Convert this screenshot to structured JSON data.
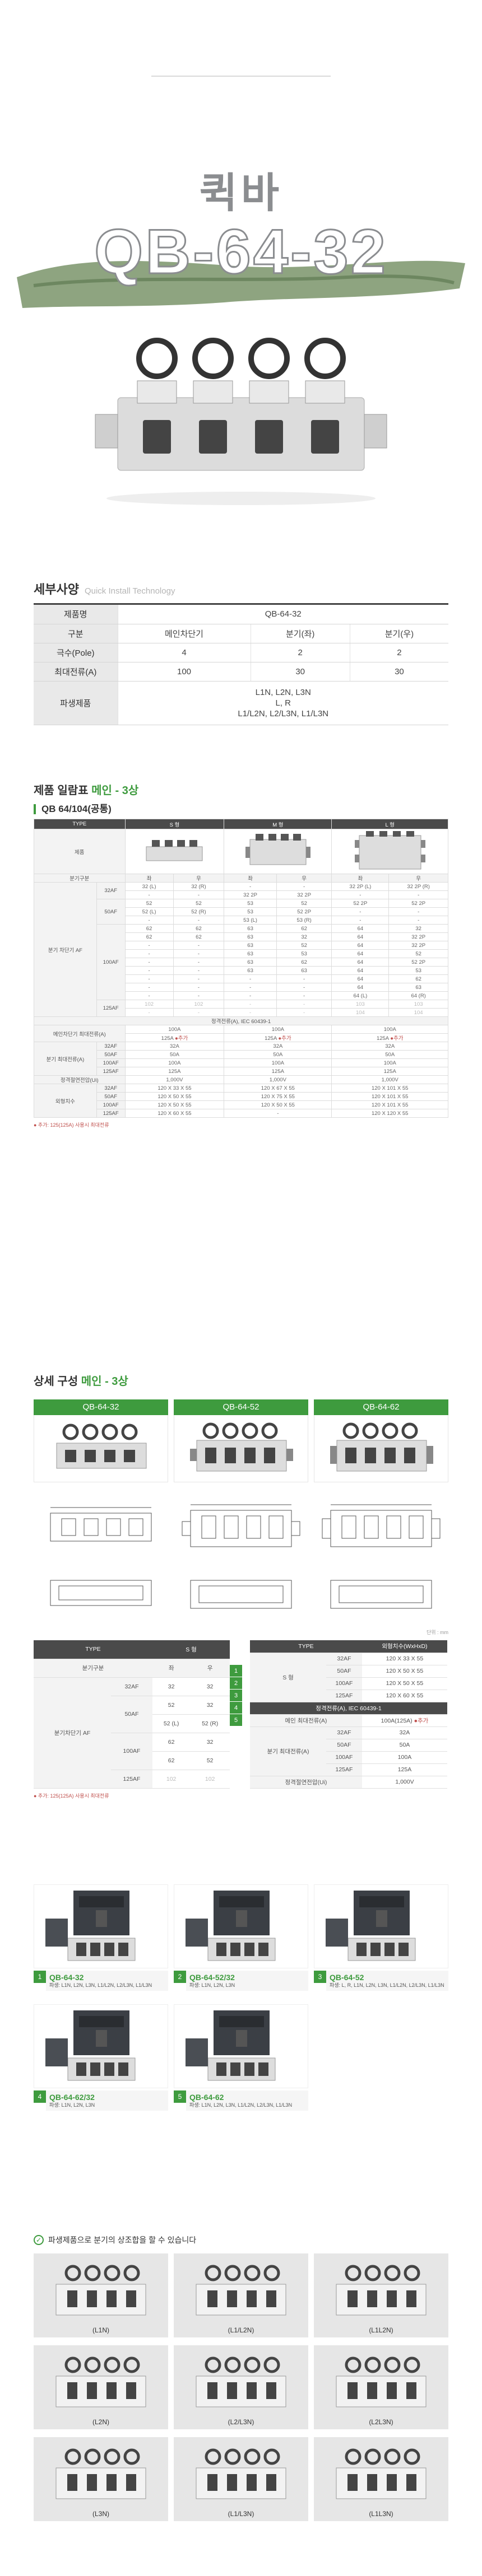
{
  "hero": {
    "title_kr": "퀵바",
    "model": "QB-64-32"
  },
  "spec": {
    "title": "세부사양",
    "subtitle": "Quick Install Technology",
    "rows": [
      {
        "label": "제품명",
        "cells": [
          "QB-64-32"
        ]
      },
      {
        "label": "구분",
        "cells": [
          "메인차단기",
          "분기(좌)",
          "분기(우)"
        ]
      },
      {
        "label": "극수(Pole)",
        "cells": [
          "4",
          "2",
          "2"
        ]
      },
      {
        "label": "최대전류(A)",
        "cells": [
          "100",
          "30",
          "30"
        ]
      },
      {
        "label": "파생제품",
        "cells": [
          "L1N, L2N, L3N",
          "L, R",
          "L1/L2N, L2/L3N, L1/L3N"
        ]
      }
    ]
  },
  "product_table": {
    "title": "제품 일람표",
    "accent": "메인 - 3상",
    "subtitle": "QB 64/104(공통)",
    "header": [
      "TYPE",
      "S 형",
      "M 형",
      "L 형"
    ],
    "product_label": "제품",
    "branch_label": "분기구분",
    "branch_cols": [
      "좌",
      "우",
      "좌",
      "우",
      "좌",
      "우"
    ],
    "breaker_label": "분기 차단기 AF",
    "af32": "32AF",
    "af50": "50AF",
    "af100": "100AF",
    "af125": "125AF",
    "rows": [
      [
        "32AF",
        "32 (L)",
        "32 (R)",
        "-",
        "-",
        "32 2P (L)",
        "32 2P (R)"
      ],
      [
        "",
        "-",
        "-",
        "32 2P",
        "32 2P",
        "-",
        "-"
      ],
      [
        "50AF",
        "52",
        "52",
        "53",
        "52",
        "52 2P",
        "52 2P"
      ],
      [
        "",
        "52 (L)",
        "52 (R)",
        "53",
        "52 2P",
        "-",
        "-"
      ],
      [
        "",
        "-",
        "-",
        "53 (L)",
        "53 (R)",
        "-",
        "-"
      ],
      [
        "100AF",
        "62",
        "62",
        "63",
        "62",
        "64",
        "32"
      ],
      [
        "",
        "62",
        "62",
        "63",
        "32",
        "64",
        "32 2P"
      ],
      [
        "",
        "-",
        "-",
        "63",
        "52",
        "64",
        "32 2P"
      ],
      [
        "",
        "-",
        "-",
        "63",
        "53",
        "64",
        "52"
      ],
      [
        "",
        "-",
        "-",
        "63",
        "62",
        "64",
        "52 2P"
      ],
      [
        "",
        "-",
        "-",
        "63",
        "63",
        "64",
        "53"
      ],
      [
        "",
        "-",
        "-",
        "-",
        "-",
        "64",
        "62"
      ],
      [
        "",
        "-",
        "-",
        "-",
        "-",
        "64",
        "63"
      ],
      [
        "",
        "-",
        "-",
        "-",
        "-",
        "64 (L)",
        "64 (R)"
      ],
      [
        "125AF",
        "102",
        "102",
        "-",
        "-",
        "103",
        "103"
      ],
      [
        "",
        "-",
        "-",
        "-",
        "-",
        "104",
        "104"
      ]
    ],
    "rated_current_label": "정격전류(A), IEC 60439-1",
    "main_max_label": "메인차단기 최대전류(A)",
    "main_max": [
      "100A",
      "100A",
      "100A"
    ],
    "main_max2": [
      "125A",
      "125A",
      "125A"
    ],
    "mark": "●추가",
    "branch_max_label": "분기 최대전류(A)",
    "branch_max_rows": [
      [
        "32AF",
        "32A",
        "32A",
        "32A"
      ],
      [
        "50AF",
        "50A",
        "50A",
        "50A"
      ],
      [
        "100AF",
        "100A",
        "100A",
        "100A"
      ],
      [
        "125AF",
        "125A",
        "125A",
        "125A"
      ]
    ],
    "insulation_label": "정격절연전압(Ui)",
    "insulation": [
      "1,000V",
      "1,000V",
      "1,000V"
    ],
    "dim_label": "외형치수",
    "dim_sub": "(W x H x D mm)",
    "dim_rows": [
      [
        "32AF",
        "120 X 33 X 55",
        "120 X 67 X 55",
        "120 X 101 X 55"
      ],
      [
        "50AF",
        "120 X 50 X 55",
        "120 X 75 X 55",
        "120 X 101 X 55"
      ],
      [
        "100AF",
        "120 X 50 X 55",
        "120 X 50 X 55",
        "120 X 101 X 55"
      ],
      [
        "125AF",
        "120 X 60 X 55",
        "-",
        "120 X 120 X 55"
      ]
    ],
    "note": "● 추가: 125(125A) 사용시 최대전류"
  },
  "detail": {
    "title": "상세 구성",
    "accent": "메인 - 3상",
    "cards": [
      "QB-64-32",
      "QB-64-52",
      "QB-64-62"
    ],
    "unit": "단위 : mm",
    "left_table": {
      "type_label": "TYPE",
      "s_label": "S 형",
      "branch_label": "분기구분",
      "left": "좌",
      "right": "우",
      "breaker_label": "분기차단기 AF",
      "rows": [
        [
          "32AF",
          "32",
          "32",
          "1"
        ],
        [
          "50AF",
          "52",
          "32",
          "2"
        ],
        [
          "",
          "52 (L)",
          "52 (R)",
          "3"
        ],
        [
          "100AF",
          "62",
          "32",
          "4"
        ],
        [
          "",
          "62",
          "52",
          "5"
        ],
        [
          "125AF",
          "102",
          "102",
          ""
        ]
      ]
    },
    "right_table": {
      "type_label": "TYPE",
      "dim_label": "외형치수(WxHxD)",
      "s_label": "S 형",
      "dim_rows": [
        [
          "32AF",
          "120 X 33 X 55"
        ],
        [
          "50AF",
          "120 X 50 X 55"
        ],
        [
          "100AF",
          "120 X 50 X 55"
        ],
        [
          "125AF",
          "120 X 60 X 55"
        ]
      ],
      "rated_label": "정격전류(A), IEC 60439-1",
      "main_max_label": "메인 최대전류(A)",
      "main_max": "100A(125A)",
      "mark": "●추가",
      "branch_label": "분기 최대전류(A)",
      "branch_rows": [
        [
          "32AF",
          "32A"
        ],
        [
          "50AF",
          "50A"
        ],
        [
          "100AF",
          "100A"
        ],
        [
          "125AF",
          "125A"
        ]
      ],
      "insulation_label": "정격절연전압(Ui)",
      "insulation": "1,000V"
    },
    "note": "● 추가: 125(125A) 사용시 최대전류"
  },
  "variants": [
    {
      "num": "1",
      "name": "QB-64-32",
      "desc": "파생: L1N, L2N, L3N, L1/L2N, L2/L3N, L1/L3N"
    },
    {
      "num": "2",
      "name": "QB-64-52/32",
      "desc": "파생: L1N, L2N, L3N"
    },
    {
      "num": "3",
      "name": "QB-64-52",
      "desc": "파생: L, R, L1N, L2N, L3N, L1/L2N, L2/L3N, L1/L3N"
    },
    {
      "num": "4",
      "name": "QB-64-62/32",
      "desc": "파생: L1N, L2N, L3N"
    },
    {
      "num": "5",
      "name": "QB-64-62",
      "desc": "파생: L1N, L2N, L3N, L1/L2N, L2/L3N, L1/L3N"
    }
  ],
  "combo": {
    "title": "파생제품으로 분기의 상조합을 할 수 있습니다",
    "items": [
      "(L1N)",
      "(L1/L2N)",
      "(L1L2N)",
      "(L2N)",
      "(L2/L3N)",
      "(L2L3N)",
      "(L3N)",
      "(L1/L3N)",
      "(L1L3N)"
    ]
  },
  "colors": {
    "accent": "#3e9b3e",
    "header": "#4a4a4a",
    "hero_text": "#8b8d90"
  }
}
